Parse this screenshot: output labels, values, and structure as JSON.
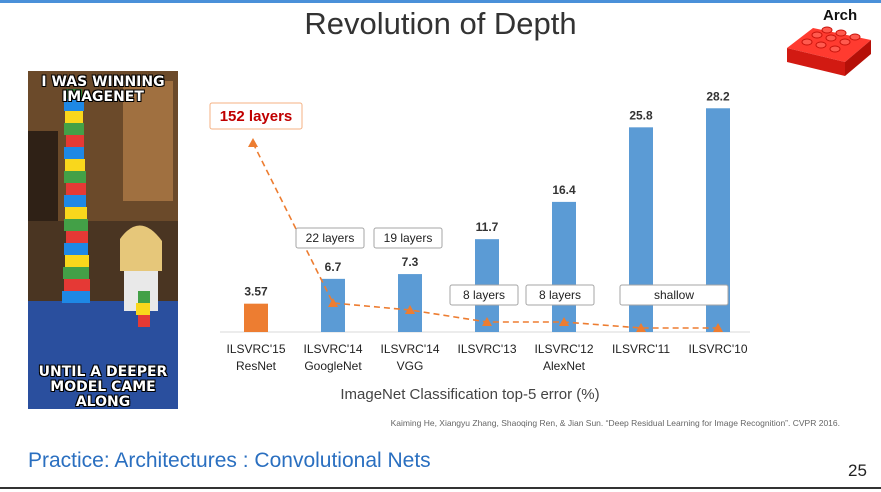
{
  "slide": {
    "title": "Revolution of Depth",
    "footer": "Practice: Architectures : Convolutional Nets",
    "page_number": "25",
    "arch_label": "Arch",
    "meme_top": "I WAS WINNING IMAGENET",
    "meme_bottom": "UNTIL A DEEPER MODEL CAME ALONG",
    "citation": "Kaiming He, Xiangyu Zhang, Shaoqing Ren, & Jian Sun. “Deep Residual Learning for Image Recognition”. CVPR 2016."
  },
  "chart_data": {
    "type": "bar",
    "xlabel": "ImageNet Classification top-5 error (%)",
    "categories": [
      "ILSVRC'15\nResNet",
      "ILSVRC'14\nGoogleNet",
      "ILSVRC'14\nVGG",
      "ILSVRC'13",
      "ILSVRC'12\nAlexNet",
      "ILSVRC'11",
      "ILSVRC'10"
    ],
    "values": [
      3.57,
      6.7,
      7.3,
      11.7,
      16.4,
      25.8,
      28.2
    ],
    "value_labels": [
      "3.57",
      "6.7",
      "7.3",
      "11.7",
      "16.4",
      "25.8",
      "28.2"
    ],
    "layer_labels": [
      "152 layers",
      "22 layers",
      "19 layers",
      "8 layers",
      "8 layers",
      "shallow",
      ""
    ],
    "bar_colors": [
      "#ed7d31",
      "#5b9bd5",
      "#5b9bd5",
      "#5b9bd5",
      "#5b9bd5",
      "#5b9bd5",
      "#5b9bd5"
    ],
    "highlight_color": "#c00000",
    "trend_color": "#ed7d31",
    "ylim": [
      0,
      30
    ]
  }
}
